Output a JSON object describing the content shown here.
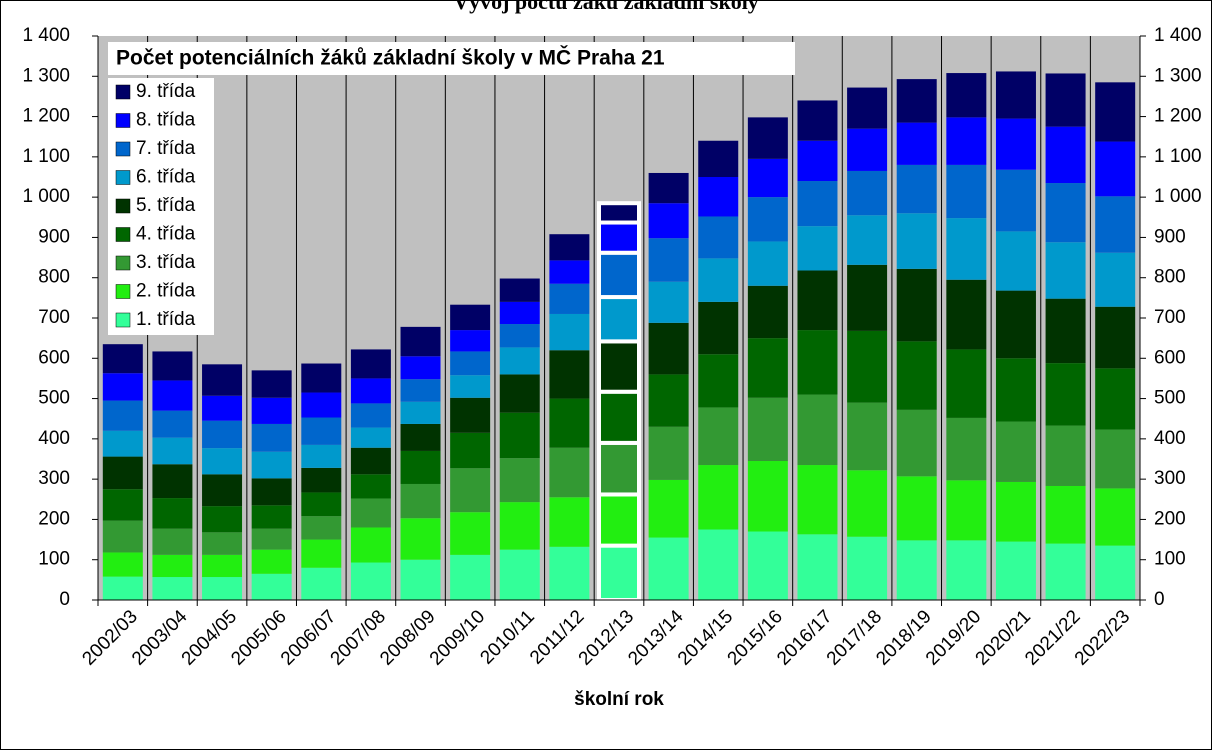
{
  "chart_data": {
    "type": "stacked_bar",
    "title": "Vývoj počtu žáků základní školy",
    "subtitle": "Počet potenciálních žáků základní školy v MČ Praha 21",
    "x_label": "školní rok",
    "categories": [
      "2002/03",
      "2003/04",
      "2004/05",
      "2005/06",
      "2006/07",
      "2007/08",
      "2008/09",
      "2009/10",
      "2010/11",
      "2011/12",
      "2012/13",
      "2013/14",
      "2014/15",
      "2015/16",
      "2016/17",
      "2017/18",
      "2018/19",
      "2019/20",
      "2020/21",
      "2021/22",
      "2022/23"
    ],
    "highlight_index": 10,
    "series": [
      {
        "name": "1. třída",
        "color": "#33ff99",
        "values": [
          58,
          57,
          57,
          65,
          80,
          93,
          100,
          112,
          125,
          132,
          135,
          155,
          175,
          170,
          163,
          157,
          148,
          148,
          145,
          140,
          135
        ]
      },
      {
        "name": "2. třída",
        "color": "#22ee11",
        "values": [
          60,
          55,
          55,
          60,
          70,
          87,
          103,
          106,
          118,
          123,
          127,
          143,
          160,
          175,
          172,
          165,
          159,
          149,
          148,
          143,
          142
        ]
      },
      {
        "name": "3. třída",
        "color": "#339933",
        "values": [
          79,
          65,
          56,
          52,
          58,
          72,
          85,
          109,
          109,
          123,
          128,
          132,
          143,
          157,
          175,
          168,
          165,
          155,
          150,
          150,
          146
        ]
      },
      {
        "name": "4. třída",
        "color": "#006600",
        "values": [
          78,
          76,
          65,
          58,
          59,
          60,
          82,
          88,
          113,
          122,
          127,
          130,
          132,
          148,
          160,
          178,
          170,
          170,
          157,
          155,
          152
        ]
      },
      {
        "name": "5. třída",
        "color": "#003300",
        "values": [
          81,
          84,
          79,
          67,
          61,
          66,
          67,
          87,
          95,
          120,
          125,
          128,
          130,
          130,
          148,
          164,
          180,
          173,
          168,
          160,
          153
        ]
      },
      {
        "name": "6. třída",
        "color": "#0099cc",
        "values": [
          64,
          66,
          65,
          66,
          57,
          50,
          55,
          56,
          67,
          90,
          110,
          102,
          108,
          110,
          110,
          123,
          138,
          153,
          147,
          140,
          134
        ]
      },
      {
        "name": "7. třída",
        "color": "#0066cc",
        "values": [
          75,
          67,
          68,
          69,
          68,
          60,
          56,
          59,
          58,
          75,
          110,
          108,
          104,
          110,
          112,
          110,
          120,
          132,
          153,
          147,
          140
        ]
      },
      {
        "name": "8. třída",
        "color": "#0000ff",
        "values": [
          68,
          75,
          62,
          65,
          62,
          62,
          57,
          53,
          55,
          58,
          75,
          87,
          98,
          95,
          100,
          105,
          105,
          118,
          127,
          140,
          136
        ]
      },
      {
        "name": "9. třída",
        "color": "#000066",
        "values": [
          72,
          72,
          78,
          68,
          72,
          72,
          73,
          63,
          58,
          65,
          48,
          75,
          90,
          103,
          100,
          102,
          108,
          110,
          117,
          132,
          147
        ]
      }
    ],
    "ylim": [
      0,
      1400
    ],
    "yticks": [
      0,
      100,
      200,
      300,
      400,
      500,
      600,
      700,
      800,
      900,
      {
        "value": 1000,
        "label": "1 000"
      },
      {
        "value": 1100,
        "label": "1 100"
      },
      {
        "value": 1200,
        "label": "1 200"
      },
      {
        "value": 1300,
        "label": "1 300"
      },
      {
        "value": 1400,
        "label": "1 400"
      }
    ],
    "y2lim": [
      0,
      1400
    ],
    "y2ticks": [
      0,
      100,
      200,
      300,
      400,
      500,
      600,
      700,
      800,
      900,
      {
        "value": 1000,
        "label": "1 000"
      },
      {
        "value": 1100,
        "label": "1 100"
      },
      {
        "value": 1200,
        "label": "1 200"
      },
      {
        "value": 1300,
        "label": "1 300"
      },
      {
        "value": 1400,
        "label": "1 400"
      }
    ],
    "legend": "top-left"
  }
}
